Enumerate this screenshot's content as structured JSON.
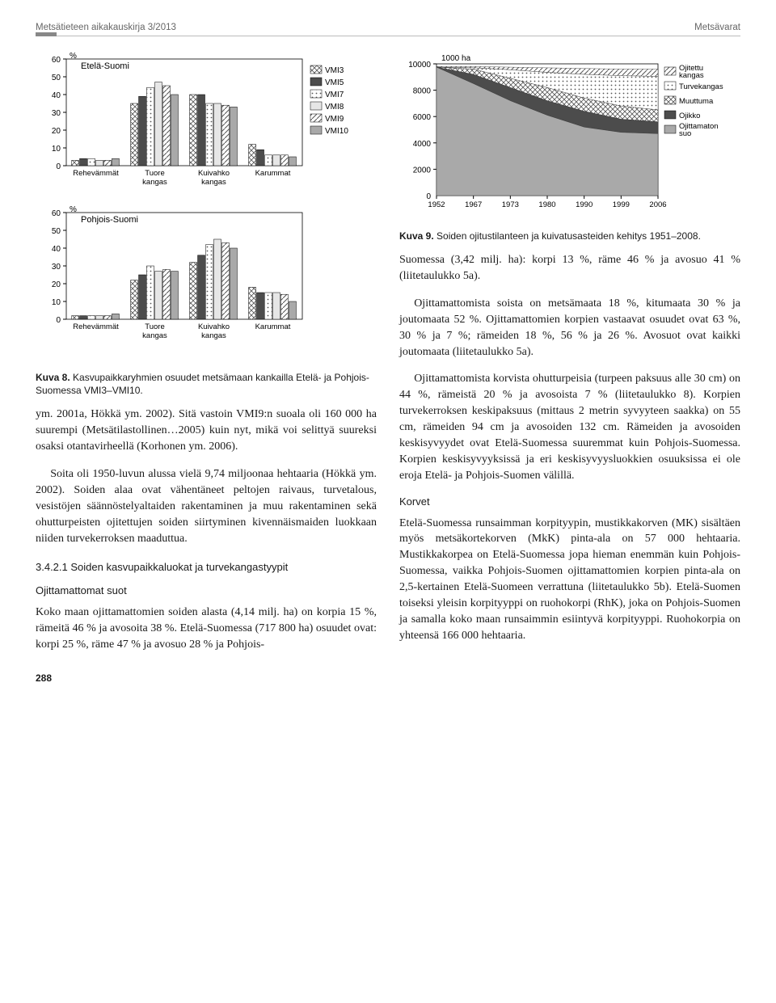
{
  "running_head": {
    "left": "Metsätieteen aikakauskirja 3/2013",
    "right": "Metsävarat"
  },
  "page_number": "288",
  "kuva8": {
    "type": "grouped-bar",
    "panels": [
      {
        "title": "Etelä-Suomi",
        "ylabel": "%",
        "ymax": 60,
        "ytick": 10,
        "categories": [
          "Rehevämmät",
          "Tuore kangas",
          "Kuivahko kangas",
          "Karummat"
        ],
        "series_values": [
          [
            3,
            4,
            4,
            3,
            3,
            4
          ],
          [
            35,
            39,
            44,
            47,
            45,
            40
          ],
          [
            40,
            40,
            35,
            35,
            34,
            33
          ],
          [
            12,
            9,
            6,
            6,
            6,
            5
          ]
        ]
      },
      {
        "title": "Pohjois-Suomi",
        "ylabel": "%",
        "ymax": 60,
        "ytick": 10,
        "categories": [
          "Rehevämmät",
          "Tuore kangas",
          "Kuivahko kangas",
          "Karummat"
        ],
        "series_values": [
          [
            2,
            2,
            2,
            2,
            2,
            3
          ],
          [
            22,
            25,
            30,
            27,
            28,
            27
          ],
          [
            32,
            36,
            42,
            45,
            43,
            40
          ],
          [
            18,
            15,
            15,
            15,
            14,
            10
          ]
        ]
      }
    ],
    "series": [
      "VMI3",
      "VMI5",
      "VMI7",
      "VMI8",
      "VMI9",
      "VMI10"
    ],
    "series_fills": [
      "crosshatch",
      "#4c4c4c",
      "dots",
      "#e6e6e6",
      "diag",
      "#a9a9a9"
    ],
    "caption_num": "Kuva 8.",
    "caption": " Kasvupaikkaryhmien osuudet metsämaan kankailla Etelä- ja Pohjois-Suomessa VMI3–VMI10."
  },
  "kuva9": {
    "type": "stacked-area",
    "ylabel": "1000 ha",
    "ymax": 10000,
    "ytick": 2000,
    "x_ticks": [
      "1952",
      "1967",
      "1973",
      "1980",
      "1990",
      "1999",
      "2006"
    ],
    "legend": [
      "Ojitettu kangas",
      "Turvekangas",
      "Muuttuma",
      "Ojikko",
      "Ojittamaton suo"
    ],
    "legend_fills": [
      "diag",
      "dots",
      "crosshatch",
      "#4c4c4c",
      "#a9a9a9"
    ],
    "stacks_top_to_bottom": [
      [
        9800,
        9800,
        9750,
        9700,
        9650,
        9600,
        9600
      ],
      [
        9750,
        9700,
        9550,
        9350,
        9200,
        9100,
        9050
      ],
      [
        9750,
        9600,
        8900,
        8200,
        7400,
        6800,
        6500
      ],
      [
        9750,
        9200,
        8200,
        7200,
        6400,
        5800,
        5600
      ],
      [
        9750,
        8500,
        7200,
        6100,
        5200,
        4800,
        4700
      ],
      [
        0,
        0,
        0,
        0,
        0,
        0,
        0
      ]
    ],
    "caption_num": "Kuva 9.",
    "caption": " Soiden ojitustilanteen ja kuivatusasteiden kehitys 1951–2008."
  },
  "text": {
    "left1": "ym. 2001a, Hökkä ym. 2002). Sitä vastoin VMI9:n suoala oli 160 000 ha suurempi (Metsätilastollinen…2005) kuin nyt, mikä voi selittyä suureksi osaksi otantavirheellä (Korhonen ym. 2006).",
    "left2": "Soita oli 1950-luvun alussa vielä 9,74 miljoonaa hehtaaria (Hökkä ym. 2002). Soiden alaa ovat vähentäneet peltojen raivaus, turvetalous, vesistöjen säännöstelyaltaiden rakentaminen ja muu rakentaminen sekä ohutturpeisten ojitettujen soiden siirtyminen kivennäismaiden luokkaan niiden turvekerroksen maaduttua.",
    "left_sec": "3.4.2.1 Soiden kasvupaikkaluokat ja turvekangastyypit",
    "left_sub": "Ojittamattomat suot",
    "left3": "Koko maan ojittamattomien soiden alasta (4,14 milj. ha) on korpia 15 %, rämeitä 46 % ja avosoita 38 %. Etelä-Suomessa (717 800 ha) osuudet ovat: korpi 25 %, räme 47 % ja avosuo 28 % ja Pohjois-",
    "right1": "Suomessa (3,42 milj. ha): korpi 13 %, räme 46 % ja avosuo 41 % (liitetaulukko 5a).",
    "right2": "Ojittamattomista soista on metsämaata 18 %, kitumaata 30 % ja joutomaata 52 %. Ojittamattomien korpien vastaavat osuudet ovat 63 %, 30 % ja 7 %; rämeiden 18 %, 56 % ja 26 %. Avosuot ovat kaikki joutomaata (liitetaulukko 5a).",
    "right3": "Ojittamattomista korvista ohutturpeisia (turpeen paksuus alle 30 cm) on 44 %, rämeistä 20 % ja avosoista 7 % (liitetaulukko 8). Korpien turvekerroksen keskipaksuus (mittaus 2 metrin syvyyteen saakka) on 55 cm, rämeiden 94 cm ja avosoiden 132 cm. Rämeiden ja avosoiden keskisyvyydet ovat Etelä-Suomessa suuremmat kuin Pohjois-Suomessa. Korpien keskisyvyyksissä ja eri keskisyvyysluokkien osuuksissa ei ole eroja Etelä- ja Pohjois-Suomen välillä.",
    "right_sub": "Korvet",
    "right4": "Etelä-Suomessa runsaimman korpityypin, mustikkakorven (MK) sisältäen myös metsäkortekorven (MkK) pinta-ala on 57 000 hehtaaria. Mustikkakorpea on Etelä-Suomessa jopa hieman enemmän kuin Pohjois-Suomessa, vaikka Pohjois-Suomen ojittamattomien korpien pinta-ala on 2,5-kertainen Etelä-Suomeen verrattuna (liitetaulukko 5b). Etelä-Suomen toiseksi yleisin korpityyppi on ruohokorpi (RhK), joka on Pohjois-Suomen ja samalla koko maan runsaimmin esiintyvä korpityyppi. Ruohokorpia on yhteensä 166 000 hehtaaria."
  }
}
